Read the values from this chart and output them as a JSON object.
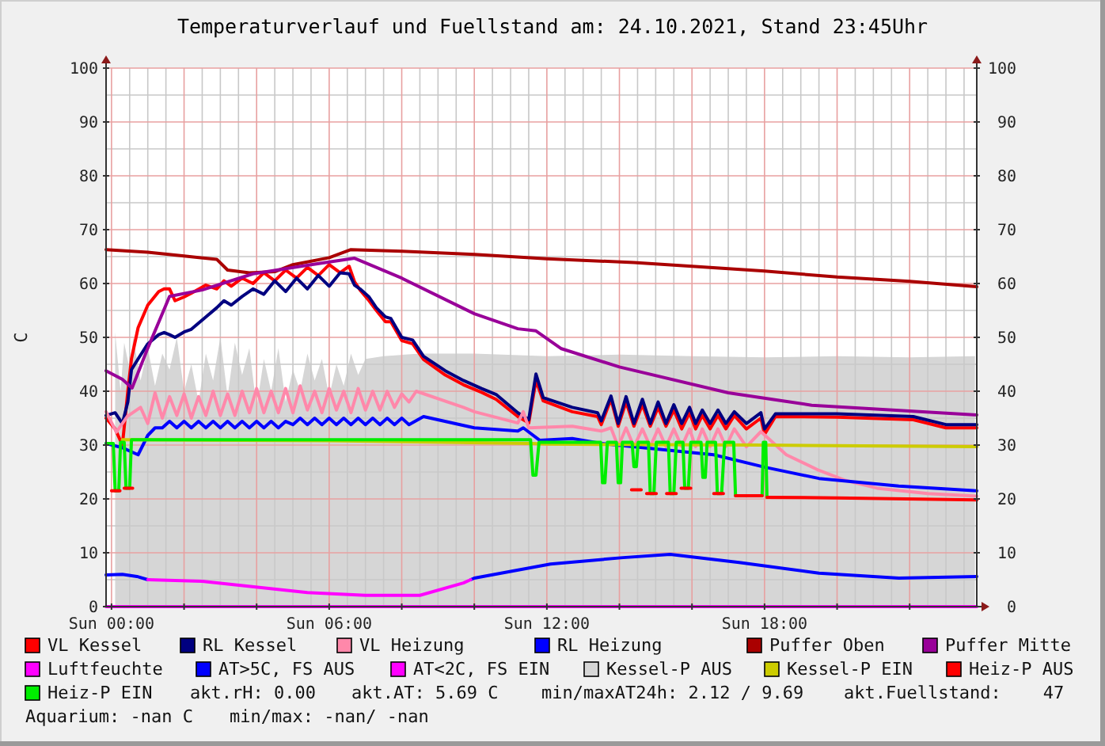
{
  "chart_data": {
    "type": "line",
    "title": "Temperaturverlauf und Fuellstand am: 24.10.2021, Stand 23:45Uhr",
    "ylabel": "C",
    "xlim": [
      "2021-10-23T23:51",
      "2021-10-24T23:51"
    ],
    "xticks": [
      {
        "value": "2021-10-24T00:00",
        "label": "Sun 00:00"
      },
      {
        "value": "2021-10-24T02:00",
        "label": null
      },
      {
        "value": "2021-10-24T04:00",
        "label": null
      },
      {
        "value": "2021-10-24T06:00",
        "label": "Sun 06:00"
      },
      {
        "value": "2021-10-24T08:00",
        "label": null
      },
      {
        "value": "2021-10-24T10:00",
        "label": null
      },
      {
        "value": "2021-10-24T12:00",
        "label": "Sun 12:00"
      },
      {
        "value": "2021-10-24T14:00",
        "label": null
      },
      {
        "value": "2021-10-24T16:00",
        "label": null
      },
      {
        "value": "2021-10-24T18:00",
        "label": "Sun 18:00"
      },
      {
        "value": "2021-10-24T20:00",
        "label": null
      },
      {
        "value": "2021-10-24T22:00",
        "label": null
      }
    ],
    "ylim": [
      0,
      100
    ],
    "yticks": [
      0,
      10,
      20,
      30,
      40,
      50,
      60,
      70,
      80,
      90,
      100
    ],
    "y2lim": [
      0,
      100
    ],
    "y2ticks": [
      0,
      10,
      20,
      30,
      40,
      50,
      60,
      70,
      80,
      90,
      100
    ],
    "grid": true,
    "legend": "bottom",
    "annotations": [
      "akt.rH: 0.00",
      "akt.AT: 5.69 C",
      "min/maxAT24h: 2.12 / 9.69",
      "akt.Fuellstand:    47",
      "Aquarium: -nan C",
      "min/max: -nan/ -nan"
    ],
    "x": [
      "2021-10-23T23:51",
      "2021-10-24T00:06",
      "2021-10-24T00:18",
      "2021-10-24T00:27",
      "2021-10-24T00:33",
      "2021-10-24T00:44",
      "2021-10-24T01:00",
      "2021-10-24T01:18",
      "2021-10-24T01:27",
      "2021-10-24T01:36",
      "2021-10-24T01:45",
      "2021-10-24T02:00",
      "2021-10-24T02:12",
      "2021-10-24T02:36",
      "2021-10-24T02:54",
      "2021-10-24T03:06",
      "2021-10-24T03:18",
      "2021-10-24T03:36",
      "2021-10-24T03:54",
      "2021-10-24T04:12",
      "2021-10-24T04:30",
      "2021-10-24T04:48",
      "2021-10-24T05:06",
      "2021-10-24T05:24",
      "2021-10-24T05:42",
      "2021-10-24T06:00",
      "2021-10-24T06:18",
      "2021-10-24T06:33",
      "2021-10-24T06:42",
      "2021-10-24T06:51",
      "2021-10-24T07:06",
      "2021-10-24T07:18",
      "2021-10-24T07:33",
      "2021-10-24T07:42",
      "2021-10-24T08:00",
      "2021-10-24T08:18",
      "2021-10-24T08:36",
      "2021-10-24T09:12",
      "2021-10-24T09:42",
      "2021-10-24T10:12",
      "2021-10-24T10:36",
      "2021-10-24T11:12",
      "2021-10-24T11:30",
      "2021-10-24T11:42",
      "2021-10-24T11:54",
      "2021-10-24T12:42",
      "2021-10-24T13:24",
      "2021-10-24T13:30",
      "2021-10-24T13:46",
      "2021-10-24T13:58",
      "2021-10-24T14:11",
      "2021-10-24T14:24",
      "2021-10-24T14:38",
      "2021-10-24T14:51",
      "2021-10-24T15:04",
      "2021-10-24T15:17",
      "2021-10-24T15:30",
      "2021-10-24T15:43",
      "2021-10-24T15:56",
      "2021-10-24T16:06",
      "2021-10-24T16:17",
      "2021-10-24T16:30",
      "2021-10-24T16:43",
      "2021-10-24T16:56",
      "2021-10-24T17:10",
      "2021-10-24T17:30",
      "2021-10-24T17:54",
      "2021-10-24T18:00",
      "2021-10-24T18:18",
      "2021-10-24T20:00",
      "2021-10-24T22:06",
      "2021-10-24T23:00",
      "2021-10-24T23:51"
    ],
    "series": [
      {
        "name": "VL Kessel",
        "color": "#ff0000",
        "values": [
          35,
          33,
          30,
          40,
          46,
          51.8,
          56,
          58.5,
          59,
          59,
          56.8,
          57.5,
          58.2,
          59.7,
          59,
          60.5,
          59.5,
          61,
          60,
          62,
          60.5,
          62.5,
          61,
          63,
          61.5,
          63.5,
          62,
          63.2,
          60.3,
          58.8,
          56.8,
          55,
          52.9,
          52.9,
          49.4,
          48.8,
          45.9,
          43,
          41.2,
          39.8,
          38.5,
          35.3,
          34.1,
          42,
          38.2,
          36.2,
          35.3,
          33.8,
          38.5,
          33.5,
          38,
          33.5,
          37.5,
          33.5,
          37,
          33.5,
          36.5,
          33,
          36,
          33,
          35.5,
          33,
          35.5,
          33,
          35.5,
          33,
          35,
          32,
          35.3,
          35.2,
          34.7,
          33.2,
          33.2
        ]
      },
      {
        "name": "RL Kessel",
        "color": "#000080",
        "values": [
          35.5,
          36,
          34,
          38,
          44,
          46,
          48.8,
          50.5,
          50.9,
          50.5,
          50,
          51,
          51.5,
          53.8,
          55.5,
          56.8,
          56,
          57.6,
          59,
          58,
          60.5,
          58.5,
          61,
          59,
          61.5,
          59.5,
          62,
          61.8,
          59.7,
          59,
          57.5,
          55.5,
          53.8,
          53.5,
          50,
          49.5,
          46.5,
          43.8,
          42,
          40.5,
          39.4,
          36,
          34.7,
          43.2,
          38.8,
          37,
          36,
          34.5,
          39.1,
          34,
          39,
          34,
          38.5,
          34,
          38,
          34,
          37.5,
          34,
          37,
          34,
          36.5,
          34,
          36.5,
          34,
          36.2,
          34,
          36,
          33,
          35.8,
          35.8,
          35.3,
          33.8,
          33.8
        ]
      },
      {
        "name": "VL Heizung",
        "color": "#ff88aa",
        "x": [
          "2021-10-23T23:51",
          "2021-10-24T00:08",
          "2021-10-24T00:26",
          "2021-10-24T00:48",
          "2021-10-24T01:00",
          "2021-10-24T01:12",
          "2021-10-24T01:24",
          "2021-10-24T01:36",
          "2021-10-24T01:48",
          "2021-10-24T02:00",
          "2021-10-24T02:12",
          "2021-10-24T02:24",
          "2021-10-24T02:36",
          "2021-10-24T02:48",
          "2021-10-24T03:00",
          "2021-10-24T03:12",
          "2021-10-24T03:24",
          "2021-10-24T03:36",
          "2021-10-24T03:48",
          "2021-10-24T04:00",
          "2021-10-24T04:12",
          "2021-10-24T04:24",
          "2021-10-24T04:36",
          "2021-10-24T04:48",
          "2021-10-24T05:00",
          "2021-10-24T05:12",
          "2021-10-24T05:24",
          "2021-10-24T05:36",
          "2021-10-24T05:48",
          "2021-10-24T06:00",
          "2021-10-24T06:12",
          "2021-10-24T06:24",
          "2021-10-24T06:36",
          "2021-10-24T06:48",
          "2021-10-24T07:00",
          "2021-10-24T07:12",
          "2021-10-24T07:24",
          "2021-10-24T07:36",
          "2021-10-24T07:48",
          "2021-10-24T08:00",
          "2021-10-24T08:12",
          "2021-10-24T08:24",
          "2021-10-24T09:42",
          "2021-10-24T10:00",
          "2021-10-24T11:12",
          "2021-10-24T11:21",
          "2021-10-24T11:30",
          "2021-10-24T12:42",
          "2021-10-24T13:30",
          "2021-10-24T13:46",
          "2021-10-24T13:58",
          "2021-10-24T14:11",
          "2021-10-24T14:24",
          "2021-10-24T14:38",
          "2021-10-24T14:51",
          "2021-10-24T15:04",
          "2021-10-24T15:17",
          "2021-10-24T15:30",
          "2021-10-24T15:43",
          "2021-10-24T15:56",
          "2021-10-24T16:06",
          "2021-10-24T16:17",
          "2021-10-24T16:30",
          "2021-10-24T16:43",
          "2021-10-24T16:56",
          "2021-10-24T17:10",
          "2021-10-24T17:30",
          "2021-10-24T17:54",
          "2021-10-24T18:36",
          "2021-10-24T19:30",
          "2021-10-24T20:12",
          "2021-10-24T21:06",
          "2021-10-24T22:30",
          "2021-10-24T23:51"
        ],
        "values": [
          36.2,
          32.4,
          35.3,
          37,
          34,
          39.7,
          35,
          39,
          35.5,
          39.5,
          35,
          39,
          35.5,
          40,
          35.5,
          39.5,
          35.5,
          40,
          36,
          40.5,
          36,
          40,
          36,
          40.5,
          36,
          41,
          36.5,
          40,
          36,
          40.5,
          36.5,
          40,
          36,
          40.5,
          36.5,
          40,
          36.5,
          40,
          37,
          39.5,
          38,
          40,
          37,
          36.2,
          34.1,
          36.2,
          33.2,
          33.5,
          32.6,
          33.2,
          29.7,
          33.2,
          29.7,
          33,
          29.7,
          33,
          29.7,
          33,
          29.7,
          33,
          29.7,
          33,
          29.7,
          33,
          29.7,
          33,
          29.7,
          32.5,
          28.2,
          25.3,
          23.5,
          22,
          21,
          20.5
        ]
      },
      {
        "name": "RL Heizung",
        "color": "#0000ff",
        "x": [
          "2021-10-23T23:51",
          "2021-10-24T00:18",
          "2021-10-24T00:44",
          "2021-10-24T01:00",
          "2021-10-24T01:12",
          "2021-10-24T01:24",
          "2021-10-24T01:36",
          "2021-10-24T01:48",
          "2021-10-24T02:00",
          "2021-10-24T02:12",
          "2021-10-24T02:24",
          "2021-10-24T02:36",
          "2021-10-24T02:48",
          "2021-10-24T03:00",
          "2021-10-24T03:12",
          "2021-10-24T03:24",
          "2021-10-24T03:36",
          "2021-10-24T03:48",
          "2021-10-24T04:00",
          "2021-10-24T04:12",
          "2021-10-24T04:24",
          "2021-10-24T04:36",
          "2021-10-24T04:48",
          "2021-10-24T05:00",
          "2021-10-24T05:12",
          "2021-10-24T05:24",
          "2021-10-24T05:36",
          "2021-10-24T05:48",
          "2021-10-24T06:00",
          "2021-10-24T06:12",
          "2021-10-24T06:24",
          "2021-10-24T06:36",
          "2021-10-24T06:48",
          "2021-10-24T07:00",
          "2021-10-24T07:12",
          "2021-10-24T07:24",
          "2021-10-24T07:36",
          "2021-10-24T07:48",
          "2021-10-24T08:00",
          "2021-10-24T08:12",
          "2021-10-24T08:36",
          "2021-10-24T10:00",
          "2021-10-24T11:12",
          "2021-10-24T11:21",
          "2021-10-24T11:48",
          "2021-10-24T12:42",
          "2021-10-24T13:30",
          "2021-10-24T16:36",
          "2021-10-24T18:00",
          "2021-10-24T19:30",
          "2021-10-24T21:42",
          "2021-10-24T23:51"
        ],
        "values": [
          30.3,
          29.5,
          28.2,
          31.8,
          33.2,
          33.2,
          34.4,
          33.2,
          34.4,
          33.2,
          34.4,
          33.2,
          34.4,
          33.2,
          34.4,
          33.2,
          34.4,
          33.2,
          34.4,
          33.2,
          34.4,
          33.2,
          34.4,
          33.8,
          35,
          33.8,
          35,
          33.8,
          35,
          33.8,
          35,
          33.8,
          35,
          33.8,
          35,
          33.8,
          35,
          33.8,
          35,
          33.8,
          35.3,
          33.2,
          32.6,
          33.2,
          30.9,
          31.2,
          30.3,
          28.2,
          25.9,
          23.8,
          22.4,
          21.5
        ]
      },
      {
        "name": "Puffer Oben",
        "color": "#aa0000",
        "x": [
          "2021-10-23T23:51",
          "2021-10-24T01:00",
          "2021-10-24T02:00",
          "2021-10-24T02:54",
          "2021-10-24T03:12",
          "2021-10-24T03:48",
          "2021-10-24T04:30",
          "2021-10-24T05:00",
          "2021-10-24T06:00",
          "2021-10-24T06:36",
          "2021-10-24T08:00",
          "2021-10-24T10:00",
          "2021-10-24T12:00",
          "2021-10-24T14:24",
          "2021-10-24T16:00",
          "2021-10-24T18:00",
          "2021-10-24T20:00",
          "2021-10-24T22:00",
          "2021-10-24T23:51"
        ],
        "values": [
          66.3,
          65.8,
          65.1,
          64.5,
          62.5,
          62,
          62.2,
          63.5,
          64.8,
          66.3,
          66,
          65.4,
          64.6,
          63.9,
          63.2,
          62.3,
          61.2,
          60.4,
          59.4
        ]
      },
      {
        "name": "Puffer Mitte",
        "color": "#990099",
        "x": [
          "2021-10-23T23:51",
          "2021-10-24T00:18",
          "2021-10-24T00:34",
          "2021-10-24T01:00",
          "2021-10-24T01:36",
          "2021-10-24T02:30",
          "2021-10-24T03:54",
          "2021-10-24T05:30",
          "2021-10-24T06:42",
          "2021-10-24T08:00",
          "2021-10-24T10:00",
          "2021-10-24T11:12",
          "2021-10-24T11:42",
          "2021-10-24T12:24",
          "2021-10-24T14:00",
          "2021-10-24T17:00",
          "2021-10-24T19:18",
          "2021-10-24T23:51"
        ],
        "values": [
          43.8,
          42.2,
          40.6,
          48,
          57.6,
          58.8,
          61.8,
          63.5,
          64.7,
          61,
          54.4,
          51.6,
          51.2,
          47.9,
          44.5,
          39.7,
          37.4,
          35.6
        ]
      },
      {
        "name": "Luftfeuchte",
        "color": "#ff00ff",
        "x": [
          "2021-10-23T23:51",
          "2021-10-24T23:51"
        ],
        "values": [
          0,
          0
        ]
      },
      {
        "name": "AT>5C, FS AUS",
        "color": "#0000ff",
        "x": [
          "2021-10-23T23:51",
          "2021-10-24T00:18",
          "2021-10-24T00:42",
          "2021-10-24T01:00",
          "2021-10-24T05:00",
          "2021-10-24T09:54",
          "2021-10-24T10:00",
          "2021-10-24T12:06",
          "2021-10-24T14:06",
          "2021-10-24T15:24",
          "2021-10-24T17:18",
          "2021-10-24T19:30",
          "2021-10-24T21:42",
          "2021-10-24T23:51"
        ],
        "values": [
          5.9,
          6,
          5.6,
          5.0,
          null,
          5.0,
          5.3,
          7.9,
          9.1,
          9.7,
          8.2,
          6.2,
          5.3,
          5.6
        ]
      },
      {
        "name": "AT<2C, FS EIN",
        "color": "#ff00ff",
        "x": [
          "2021-10-24T01:00",
          "2021-10-24T02:30",
          "2021-10-24T05:24",
          "2021-10-24T07:00",
          "2021-10-24T08:30",
          "2021-10-24T09:42",
          "2021-10-24T09:54"
        ],
        "values": [
          5.0,
          4.7,
          2.6,
          2.1,
          2.1,
          4.4,
          5.0
        ]
      },
      {
        "name": "Kessel-P AUS",
        "type": "area",
        "color": "#d6d6d6",
        "x": [
          "2021-10-24T00:06",
          "2021-10-24T00:15",
          "2021-10-24T00:21",
          "2021-10-24T00:30",
          "2021-10-24T00:36",
          "2021-10-24T00:48",
          "2021-10-24T01:00",
          "2021-10-24T01:12",
          "2021-10-24T01:24",
          "2021-10-24T01:36",
          "2021-10-24T01:48",
          "2021-10-24T02:00",
          "2021-10-24T02:12",
          "2021-10-24T02:24",
          "2021-10-24T02:36",
          "2021-10-24T02:48",
          "2021-10-24T03:00",
          "2021-10-24T03:12",
          "2021-10-24T03:24",
          "2021-10-24T03:36",
          "2021-10-24T03:48",
          "2021-10-24T04:00",
          "2021-10-24T04:12",
          "2021-10-24T04:24",
          "2021-10-24T04:36",
          "2021-10-24T04:48",
          "2021-10-24T05:00",
          "2021-10-24T05:12",
          "2021-10-24T05:24",
          "2021-10-24T05:36",
          "2021-10-24T05:48",
          "2021-10-24T06:00",
          "2021-10-24T06:12",
          "2021-10-24T06:24",
          "2021-10-24T06:36",
          "2021-10-24T06:48",
          "2021-10-24T07:00",
          "2021-10-24T07:30",
          "2021-10-24T08:30",
          "2021-10-24T10:00",
          "2021-10-24T12:00",
          "2021-10-24T14:00",
          "2021-10-24T16:00",
          "2021-10-24T18:00",
          "2021-10-24T20:00",
          "2021-10-24T22:00",
          "2021-10-24T23:48"
        ],
        "values": [
          51,
          40,
          49,
          44,
          50,
          42,
          48,
          41,
          47,
          44,
          50,
          40,
          45,
          38,
          47,
          42,
          50,
          39,
          49,
          43,
          48,
          37,
          46,
          40,
          48,
          38,
          44,
          40,
          47,
          42,
          46,
          39,
          45,
          41,
          47,
          43,
          46,
          46.5,
          47,
          47,
          46.5,
          46.8,
          46.5,
          46.3,
          46.5,
          46.3,
          46.5
        ]
      },
      {
        "name": "Kessel-P EIN",
        "color": "#cccc00",
        "x": [
          "2021-10-24T00:18",
          "2021-10-24T06:00",
          "2021-10-24T11:36",
          "2021-10-24T12:00",
          "2021-10-24T13:30",
          "2021-10-24T18:00",
          "2021-10-24T23:51"
        ],
        "values": [
          31,
          30.8,
          30.3,
          30.2,
          30.1,
          30,
          29.7
        ]
      },
      {
        "name": "Heiz-P EIN",
        "color": "#00ee00",
        "x": [
          "2021-10-23T23:51",
          "2021-10-24T00:03",
          "2021-10-24T00:06",
          "2021-10-24T00:12",
          "2021-10-24T00:15",
          "2021-10-24T00:21",
          "2021-10-24T00:24",
          "2021-10-24T00:30",
          "2021-10-24T00:33",
          "2021-10-24T11:33",
          "2021-10-24T11:37",
          "2021-10-24T11:42",
          "2021-10-24T11:47",
          "2021-10-24T13:29",
          "2021-10-24T13:32",
          "2021-10-24T13:36",
          "2021-10-24T13:40",
          "2021-10-24T13:55",
          "2021-10-24T13:58",
          "2021-10-24T14:02",
          "2021-10-24T14:05",
          "2021-10-24T14:21",
          "2021-10-24T14:24",
          "2021-10-24T14:28",
          "2021-10-24T14:31",
          "2021-10-24T14:48",
          "2021-10-24T14:51",
          "2021-10-24T14:57",
          "2021-10-24T15:01",
          "2021-10-24T15:21",
          "2021-10-24T15:24",
          "2021-10-24T15:30",
          "2021-10-24T15:34",
          "2021-10-24T15:45",
          "2021-10-24T15:48",
          "2021-10-24T15:54",
          "2021-10-24T15:58",
          "2021-10-24T16:15",
          "2021-10-24T16:18",
          "2021-10-24T16:22",
          "2021-10-24T16:25",
          "2021-10-24T16:39",
          "2021-10-24T16:42",
          "2021-10-24T16:49",
          "2021-10-24T16:54",
          "2021-10-24T17:09",
          "2021-10-24T17:12",
          "2021-10-24T17:56",
          "2021-10-24T17:58",
          "2021-10-24T18:02",
          "2021-10-24T18:04"
        ],
        "values": [
          30.3,
          30.3,
          21.5,
          21.5,
          30.5,
          30.5,
          22,
          22,
          31,
          31,
          24.4,
          24.4,
          30.5,
          30.5,
          23,
          23,
          30.5,
          30.5,
          23,
          23,
          30.5,
          30.5,
          26,
          26,
          30.5,
          30.5,
          21,
          21,
          30.5,
          30.5,
          21,
          21,
          30.5,
          30.5,
          22,
          22,
          30.5,
          30.5,
          24,
          24,
          30.5,
          30.5,
          21,
          21,
          30.5,
          30.5,
          20.6,
          20.6,
          30.5,
          30.5,
          20.3
        ]
      },
      {
        "name": "Heiz-P AUS",
        "color": "#ff0000",
        "x": [
          "2021-10-24T00:00",
          "2021-10-24T00:14",
          "2021-10-24T00:18",
          "2021-10-24T00:21",
          "2021-10-24T00:35",
          "2021-10-24T00:37",
          "2021-10-24T14:20",
          "2021-10-24T14:36",
          "2021-10-24T14:40",
          "2021-10-24T14:45",
          "2021-10-24T15:01",
          "2021-10-24T15:05",
          "2021-10-24T15:18",
          "2021-10-24T15:34",
          "2021-10-24T15:38",
          "2021-10-24T15:42",
          "2021-10-24T15:58",
          "2021-10-24T16:02",
          "2021-10-24T16:36",
          "2021-10-24T16:52",
          "2021-10-24T16:56",
          "2021-10-24T17:12",
          "2021-10-24T17:56",
          "2021-10-24T17:57",
          "2021-10-24T18:04",
          "2021-10-24T20:00",
          "2021-10-24T23:51"
        ],
        "values": [
          21.5,
          21.5,
          null,
          22,
          22,
          null,
          21.7,
          21.7,
          null,
          21,
          21,
          null,
          21,
          21,
          null,
          22,
          22,
          null,
          21,
          21,
          null,
          20.6,
          20.6,
          null,
          20.3,
          20.2,
          19.8
        ]
      }
    ]
  }
}
